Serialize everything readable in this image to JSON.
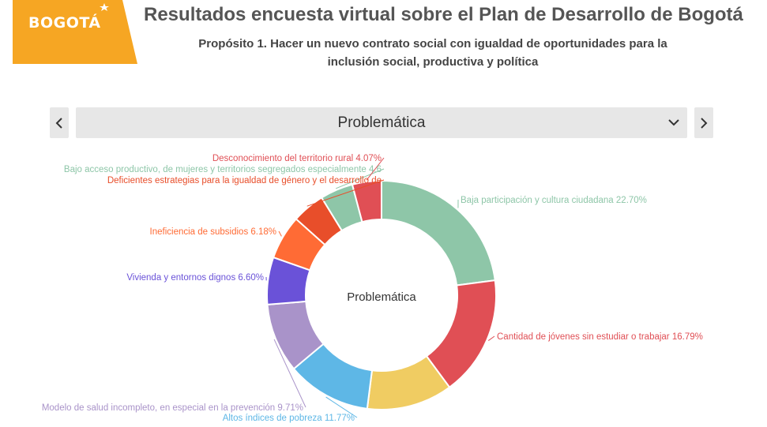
{
  "header": {
    "logo_text": "BOGOTÁ",
    "title": "Resultados encuesta virtual sobre  el Plan de Desarrollo de Bogotá",
    "subtitle_line1": "Propósito 1. Hacer un nuevo contrato social con igualdad de oportunidades para la",
    "subtitle_line2": "inclusión social, productiva y política"
  },
  "selector": {
    "prev_icon": "chevron-left-icon",
    "next_icon": "chevron-right-icon",
    "dropdown_icon": "chevron-down-icon",
    "selected": "Problemática"
  },
  "colors": {
    "brand": "#f6a623",
    "selector_bg": "#e7e7e7"
  },
  "chart_data": {
    "type": "pie",
    "donut": true,
    "center_label": "Problemática",
    "slices": [
      {
        "label": "Baja participación y cultura ciudadana 22.70%",
        "value": 22.7,
        "color": "#8ec6a8"
      },
      {
        "label": "Cantidad de jóvenes sin estudiar o trabajar 16.79%",
        "value": 16.79,
        "color": "#e04f55"
      },
      {
        "label": "",
        "value": 12.0,
        "color": "#f0cc62"
      },
      {
        "label": "Altos índices de pobreza 11.77%",
        "value": 11.77,
        "color": "#5eb7e6"
      },
      {
        "label": "Modelo de salud incompleto, en especial en la prevención 9.71%",
        "value": 9.71,
        "color": "#a993c9"
      },
      {
        "label": "Vivienda y entornos dignos 6.60%",
        "value": 6.6,
        "color": "#6a52d8"
      },
      {
        "label": "Ineficiencia de subsidios 6.18%",
        "value": 6.18,
        "color": "#ff6b35"
      },
      {
        "label": "Deficientes estrategias para la igualdad de género y el desarrollo de",
        "value": 4.6,
        "color": "#e84e2a"
      },
      {
        "label": "Bajo acceso productivo, de mujeres y territorios segregados especialmente 4.6",
        "value": 4.6,
        "color": "#8ec6a8"
      },
      {
        "label": "Desconocimiento del territorio rural 4.07%",
        "value": 4.07,
        "color": "#e04f55"
      }
    ]
  }
}
